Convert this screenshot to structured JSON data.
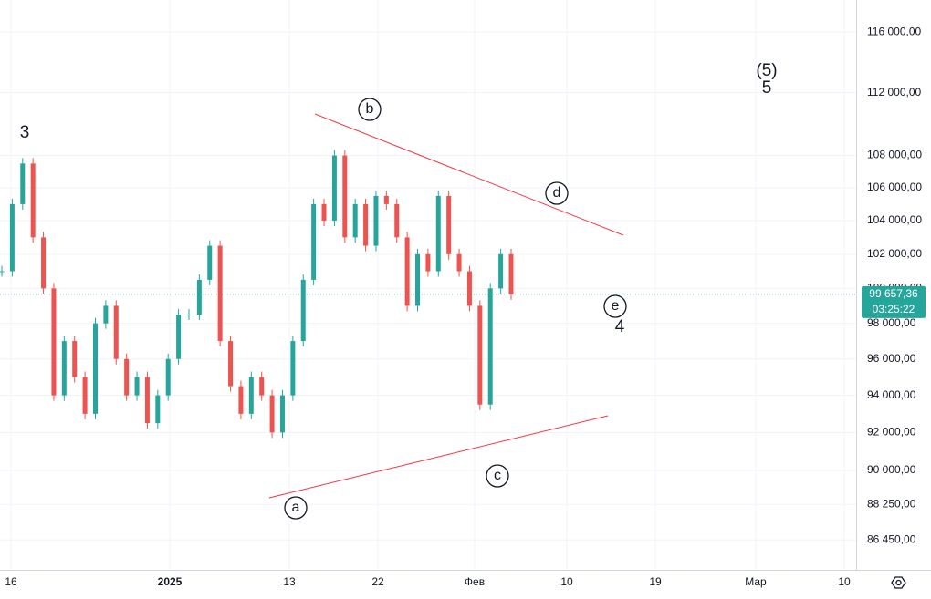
{
  "chart_data": {
    "type": "candlestick",
    "values": [
      101000,
      105000,
      107500,
      103000,
      100000,
      94000,
      97000,
      95000,
      93000,
      98000,
      99000,
      96000,
      94000,
      95000,
      92500,
      94000,
      96000,
      98500,
      98500,
      100500,
      102500,
      97000,
      94500,
      93000,
      95000,
      94000,
      92000,
      94000,
      97000,
      100500,
      105000,
      104000,
      108000,
      103000,
      105000,
      102500,
      105500,
      105000,
      103000,
      99000,
      102000,
      101000,
      105500,
      102000,
      101000,
      99000,
      93500,
      100000,
      102000,
      99657.36
    ],
    "ylim": [
      84970,
      118170
    ],
    "log": true,
    "grid": true,
    "yticks": [
      {
        "value": 116000,
        "label": "116 000,00"
      },
      {
        "value": 112000,
        "label": "112 000,00"
      },
      {
        "value": 108000,
        "label": "108 000,00"
      },
      {
        "value": 106000,
        "label": "106 000,00"
      },
      {
        "value": 104000,
        "label": "104 000,00"
      },
      {
        "value": 102000,
        "label": "102 000,00"
      },
      {
        "value": 100000,
        "label": "100 000,00"
      },
      {
        "value": 98000,
        "label": "98 000,00"
      },
      {
        "value": 96000,
        "label": "96 000,00"
      },
      {
        "value": 94000,
        "label": "94 000,00"
      },
      {
        "value": 92000,
        "label": "92 000,00"
      },
      {
        "value": 90000,
        "label": "90 000,00"
      },
      {
        "value": 88250,
        "label": "88 250,00"
      },
      {
        "value": 86450,
        "label": "86 450,00"
      }
    ],
    "xticks": [
      "16",
      "2025",
      "13",
      "22",
      "Фев",
      "10",
      "19",
      "Мар",
      "10"
    ],
    "last_price": {
      "value": 99657.36,
      "label": "99 657,36"
    },
    "countdown": "03:25:22",
    "up_color": "#26a69a",
    "down_color": "#ef5350",
    "trendline_color": "#f23645",
    "annotations": {
      "wave3": "3",
      "wave5a": "(5)",
      "wave5b": "5",
      "wave4": "4",
      "a": "a",
      "b": "b",
      "c": "c",
      "d": "d",
      "e": "e"
    }
  }
}
